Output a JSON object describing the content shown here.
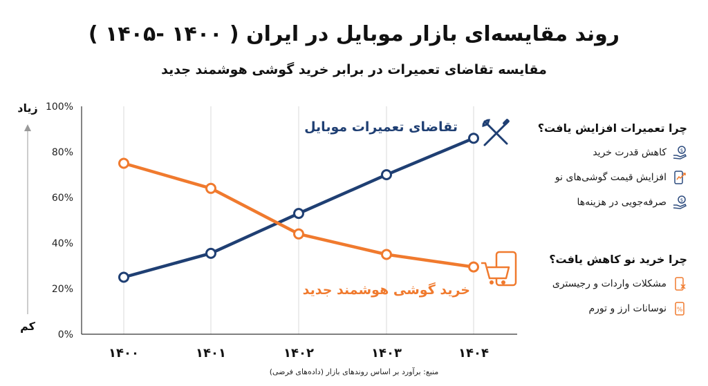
{
  "title": "روند مقایسه‌ای بازار موبایل در ایران ( ۱۴۰۰ -۱۴۰۵ )",
  "subtitle": "مقایسه تقاضای تعمیرات در برابر خرید گوشی هوشمند جدید",
  "source": "منبع: برآورد بر اساس روندهای بازار (داده‌های فرضی)",
  "colors": {
    "repair": "#1f3f73",
    "buy": "#f07a2e",
    "grid": "#d9d9d9"
  },
  "chart_data": {
    "type": "line",
    "title": "روند مقایسه‌ای بازار موبایل در ایران ( ۱۴۰۰ -۱۴۰۵ )",
    "subtitle": "مقایسه تقاضای تعمیرات در برابر خرید گوشی هوشمند جدید",
    "x": [
      "۱۴۰۰",
      "۱۴۰۱",
      "۱۴۰۲",
      "۱۴۰۳",
      "۱۴۰۴"
    ],
    "yticks": [
      "0%",
      "20%",
      "40%",
      "60%",
      "80%",
      "100%"
    ],
    "ylim": [
      0,
      100
    ],
    "y_high_label": "زیاد",
    "y_low_label": "کم",
    "grid": "vertical",
    "series": [
      {
        "name": "تقاضای تعمیرات موبایل",
        "values": [
          25,
          35.5,
          53,
          70,
          86
        ]
      },
      {
        "name": "خرید گوشی هوشمند جدید",
        "values": [
          75,
          64,
          44,
          35,
          29.5
        ]
      }
    ]
  },
  "side_panels": {
    "repair": {
      "heading": "چرا تعمیرات افزایش یافت؟",
      "items": [
        {
          "label": "کاهش قدرت خرید",
          "icon": "hand-coin-icon"
        },
        {
          "label": "افزایش قیمت گوشی‌های نو",
          "icon": "phone-trend-up-icon"
        },
        {
          "label": "صرفه‌جویی در هزینه‌ها",
          "icon": "hand-coin-icon"
        }
      ]
    },
    "buy": {
      "heading": "چرا خرید نو کاهش یافت؟",
      "items": [
        {
          "label": "مشکلات واردات و رجیستری",
          "icon": "phone-block-icon"
        },
        {
          "label": "نوسانات ارز و تورم",
          "icon": "percent-phone-icon"
        }
      ]
    }
  }
}
